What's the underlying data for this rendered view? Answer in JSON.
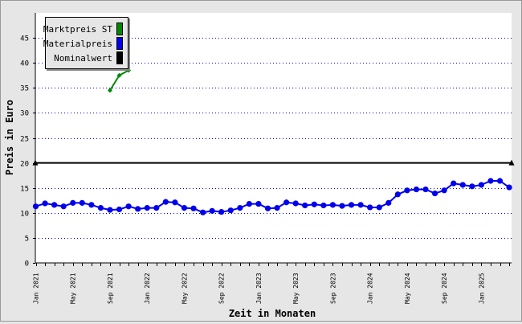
{
  "chart_data": {
    "type": "line",
    "xlabel": "Zeit in Monaten",
    "ylabel": "Preis in Euro",
    "ylim": [
      0,
      50
    ],
    "yticks": [
      0,
      5,
      10,
      15,
      20,
      25,
      30,
      35,
      40,
      45
    ],
    "grid": true,
    "legend_position": "top-left",
    "x_tick_labels": [
      "Jan 2021",
      "May 2021",
      "Sep 2021",
      "Jan 2022",
      "May 2022",
      "Sep 2022",
      "Jan 2023",
      "May 2023",
      "Sep 2023",
      "Jan 2024",
      "May 2024",
      "Sep 2024",
      "Jan 2025"
    ],
    "x_start_month": "2021-01",
    "series": [
      {
        "name": "Marktpreis ST",
        "color": "#008800",
        "marker": "diamond",
        "x": [
          "2021-09",
          "2021-10",
          "2021-11"
        ],
        "values": [
          34.5,
          37.5,
          38.5
        ]
      },
      {
        "name": "Materialpreis",
        "color": "#0000ee",
        "marker": "circle",
        "x": [
          "2021-01",
          "2021-02",
          "2021-03",
          "2021-04",
          "2021-05",
          "2021-06",
          "2021-07",
          "2021-08",
          "2021-09",
          "2021-10",
          "2021-11",
          "2021-12",
          "2022-01",
          "2022-02",
          "2022-03",
          "2022-04",
          "2022-05",
          "2022-06",
          "2022-07",
          "2022-08",
          "2022-09",
          "2022-10",
          "2022-11",
          "2022-12",
          "2023-01",
          "2023-02",
          "2023-03",
          "2023-04",
          "2023-05",
          "2023-06",
          "2023-07",
          "2023-08",
          "2023-09",
          "2023-10",
          "2023-11",
          "2023-12",
          "2024-01",
          "2024-02",
          "2024-03",
          "2024-04",
          "2024-05",
          "2024-06",
          "2024-07",
          "2024-08",
          "2024-09",
          "2024-10",
          "2024-11",
          "2024-12",
          "2025-01",
          "2025-02",
          "2025-03",
          "2025-04"
        ],
        "values": [
          11.3,
          11.9,
          11.6,
          11.3,
          12.0,
          12.0,
          11.6,
          11.0,
          10.6,
          10.7,
          11.3,
          10.8,
          11.0,
          11.0,
          12.2,
          12.1,
          11.0,
          10.9,
          10.1,
          10.4,
          10.2,
          10.5,
          11.0,
          11.8,
          11.8,
          10.9,
          11.0,
          12.1,
          11.9,
          11.5,
          11.7,
          11.5,
          11.6,
          11.4,
          11.6,
          11.6,
          11.1,
          11.1,
          12.0,
          13.7,
          14.5,
          14.7,
          14.7,
          13.9,
          14.5,
          15.9,
          15.6,
          15.3,
          15.6,
          16.4,
          16.4,
          15.1
        ]
      },
      {
        "name": "Nominalwert",
        "color": "#000000",
        "marker": "triangle",
        "constant": 20
      }
    ]
  }
}
